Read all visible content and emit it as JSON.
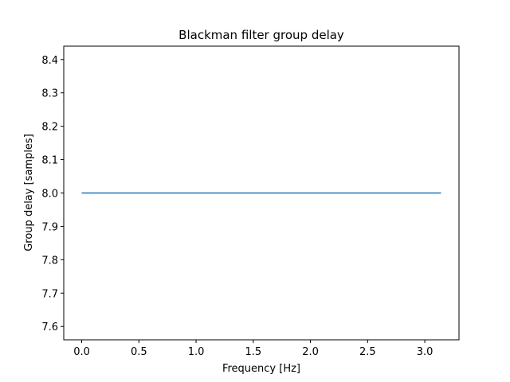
{
  "chart_data": {
    "type": "line",
    "title": "Blackman filter group delay",
    "xlabel": "Frequency [Hz]",
    "ylabel": "Group delay [samples]",
    "xlim": [
      -0.157,
      3.299
    ],
    "ylim": [
      7.56,
      8.44
    ],
    "xticks": [
      0.0,
      0.5,
      1.0,
      1.5,
      2.0,
      2.5,
      3.0
    ],
    "xtick_labels": [
      "0.0",
      "0.5",
      "1.0",
      "1.5",
      "2.0",
      "2.5",
      "3.0"
    ],
    "yticks": [
      7.6,
      7.7,
      7.8,
      7.9,
      8.0,
      8.1,
      8.2,
      8.3,
      8.4
    ],
    "ytick_labels": [
      "7.6",
      "7.7",
      "7.8",
      "7.9",
      "8.0",
      "8.1",
      "8.2",
      "8.3",
      "8.4"
    ],
    "grid": false,
    "series": [
      {
        "color": "#1f77b4",
        "x": [
          0.0,
          0.5,
          1.0,
          1.5,
          2.0,
          2.5,
          3.0,
          3.1416
        ],
        "y": [
          8.0,
          8.0,
          8.0,
          8.0,
          8.0,
          8.0,
          8.0,
          8.0
        ]
      }
    ]
  }
}
